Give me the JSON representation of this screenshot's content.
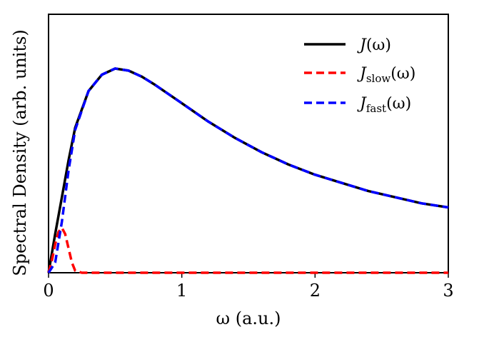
{
  "chart_data": {
    "type": "line",
    "title": "",
    "xlabel": "ω (a.u.)",
    "ylabel": "Spectral Density (arb. units)",
    "xlim": [
      0,
      3
    ],
    "ylim": [
      0,
      1.05
    ],
    "x_ticks": [
      0,
      1,
      2,
      3
    ],
    "x_tick_labels": [
      "0",
      "1",
      "2",
      "3"
    ],
    "y_ticks_labeled": false,
    "grid": false,
    "legend_position": "top-right",
    "series": [
      {
        "name": "J(ω)",
        "color": "#000000",
        "dash": "solid",
        "x": [
          0,
          0.05,
          0.1,
          0.15,
          0.2,
          0.3,
          0.4,
          0.5,
          0.6,
          0.7,
          0.8,
          1.0,
          1.2,
          1.4,
          1.6,
          1.8,
          2.0,
          2.2,
          2.4,
          2.6,
          2.8,
          3.0
        ],
        "y": [
          0,
          0.19,
          0.37,
          0.55,
          0.71,
          0.89,
          0.97,
          1.0,
          0.99,
          0.96,
          0.92,
          0.83,
          0.74,
          0.66,
          0.59,
          0.53,
          0.48,
          0.44,
          0.4,
          0.37,
          0.34,
          0.32
        ]
      },
      {
        "name": "J_slow(ω)",
        "color": "#ff0000",
        "dash": "dashed",
        "x": [
          0,
          0.025,
          0.05,
          0.075,
          0.1,
          0.125,
          0.15,
          0.175,
          0.2,
          0.25,
          0.5,
          1.0,
          2.0,
          3.0
        ],
        "y": [
          0,
          0.06,
          0.14,
          0.2,
          0.22,
          0.19,
          0.12,
          0.05,
          0.01,
          0.0,
          0.0,
          0.0,
          0.0,
          0.0
        ]
      },
      {
        "name": "J_fast(ω)",
        "color": "#0000ff",
        "dash": "dashed",
        "x": [
          0,
          0.05,
          0.1,
          0.15,
          0.2,
          0.3,
          0.4,
          0.5,
          0.6,
          0.7,
          0.8,
          1.0,
          1.2,
          1.4,
          1.6,
          1.8,
          2.0,
          2.2,
          2.4,
          2.6,
          2.8,
          3.0
        ],
        "y": [
          0,
          0.05,
          0.25,
          0.5,
          0.7,
          0.89,
          0.97,
          1.0,
          0.99,
          0.96,
          0.92,
          0.83,
          0.74,
          0.66,
          0.59,
          0.53,
          0.48,
          0.44,
          0.4,
          0.37,
          0.34,
          0.32
        ]
      }
    ]
  },
  "legend": {
    "j_main": "J",
    "j_slow": "J",
    "j_slow_sub": "slow",
    "j_fast": "J",
    "j_fast_sub": "fast",
    "arg": "(ω)"
  }
}
